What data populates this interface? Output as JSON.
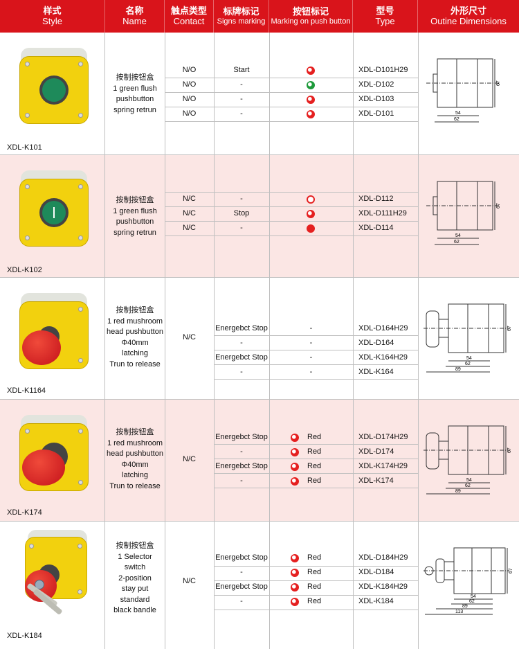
{
  "header": {
    "style_cn": "样式",
    "style_en": "Style",
    "name_cn": "名称",
    "name_en": "Name",
    "contact_cn": "触点类型",
    "contact_en": "Contact",
    "signs_cn": "标牌标记",
    "signs_en": "Signs marking",
    "marking_cn": "按钮标记",
    "marking_en": "Marking on push button",
    "type_cn": "型号",
    "type_en": "Type",
    "dim_cn": "外形尺寸",
    "dim_en": "Outine Dimensions"
  },
  "groups": [
    {
      "style_label": "XDL-K101",
      "name_lines": [
        "按制按钮盒",
        "1 green flush",
        "pushbutton",
        "spring retrun"
      ],
      "rows": [
        {
          "contact": "N/O",
          "sign": "Start",
          "marking_icon": "red-dot-icon",
          "marking_text": "",
          "type": "XDL-D101H29"
        },
        {
          "contact": "N/O",
          "sign": "-",
          "marking_icon": "green-dot-icon",
          "marking_text": "",
          "type": "XDL-D102"
        },
        {
          "contact": "N/O",
          "sign": "-",
          "marking_icon": "red-dot-icon",
          "marking_text": "",
          "type": "XDL-D103"
        },
        {
          "contact": "N/O",
          "sign": "-",
          "marking_icon": "red-dot-icon",
          "marking_text": "",
          "type": "XDL-D101"
        }
      ],
      "dims": [
        "67",
        "54",
        "62"
      ]
    },
    {
      "style_label": "XDL-K102",
      "name_lines": [
        "按制按钮盒",
        "1 green flush",
        "pushbutton",
        "spring retrun"
      ],
      "rows": [
        {
          "contact": "N/C",
          "sign": "-",
          "marking_icon": "red-ring-icon",
          "marking_text": "",
          "type": "XDL-D112"
        },
        {
          "contact": "N/C",
          "sign": "Stop",
          "marking_icon": "red-dot-icon",
          "marking_text": "",
          "type": "XDL-D111H29"
        },
        {
          "contact": "N/C",
          "sign": "-",
          "marking_icon": "red-stop-icon",
          "marking_text": "",
          "type": "XDL-D114"
        }
      ],
      "dims": [
        "67",
        "54",
        "62"
      ]
    },
    {
      "style_label": "XDL-K1164",
      "name_lines": [
        "按制按钮盒",
        "1 red mushroom",
        "head pushbutton",
        "Φ40mm",
        "latching",
        "Trun to release"
      ],
      "contact": "N/C",
      "rows": [
        {
          "sign": "Energebct Stop",
          "marking_text": "-",
          "type": "XDL-D164H29"
        },
        {
          "sign": "-",
          "marking_text": "-",
          "type": "XDL-D164"
        },
        {
          "sign": "Energebct Stop",
          "marking_text": "-",
          "type": "XDL-K164H29"
        },
        {
          "sign": "-",
          "marking_text": "-",
          "type": "XDL-K164"
        }
      ],
      "dims": [
        "67",
        "54",
        "62",
        "89"
      ]
    },
    {
      "style_label": "XDL-K174",
      "name_lines": [
        "按制按钮盒",
        "1 red mushroom",
        "head pushbutton",
        "Φ40mm",
        "latching",
        "Trun to release"
      ],
      "contact": "N/C",
      "rows": [
        {
          "sign": "Energebct Stop",
          "marking_text": "Red",
          "type": "XDL-D174H29"
        },
        {
          "sign": "-",
          "marking_text": "Red",
          "type": "XDL-D174"
        },
        {
          "sign": "Energebct Stop",
          "marking_text": "Red",
          "type": "XDL-K174H29"
        },
        {
          "sign": "-",
          "marking_text": "Red",
          "type": "XDL-K174"
        }
      ],
      "dims": [
        "67",
        "54",
        "62",
        "89"
      ]
    },
    {
      "style_label": "XDL-K184",
      "name_lines": [
        "按制按钮盒",
        "1 Selector",
        "switch",
        "2-position",
        "stay put",
        "standard",
        "black bandle"
      ],
      "contact": "N/C",
      "rows": [
        {
          "sign": "Energebct Stop",
          "marking_text": "Red",
          "type": "XDL-D184H29"
        },
        {
          "sign": "-",
          "marking_text": "Red",
          "type": "XDL-D184"
        },
        {
          "sign": "Energebct Stop",
          "marking_text": "Red",
          "type": "XDL-K184H29"
        },
        {
          "sign": "-",
          "marking_text": "Red",
          "type": "XDL-K184"
        }
      ],
      "dims": [
        "67",
        "54",
        "62",
        "89",
        "113"
      ]
    }
  ],
  "colors": {
    "header_red": "#d9141b",
    "enclosure_yellow": "#f2d10e",
    "pink_band": "#fbe6e4",
    "button_green": "#1e8a5a",
    "button_red": "#d4161c"
  }
}
